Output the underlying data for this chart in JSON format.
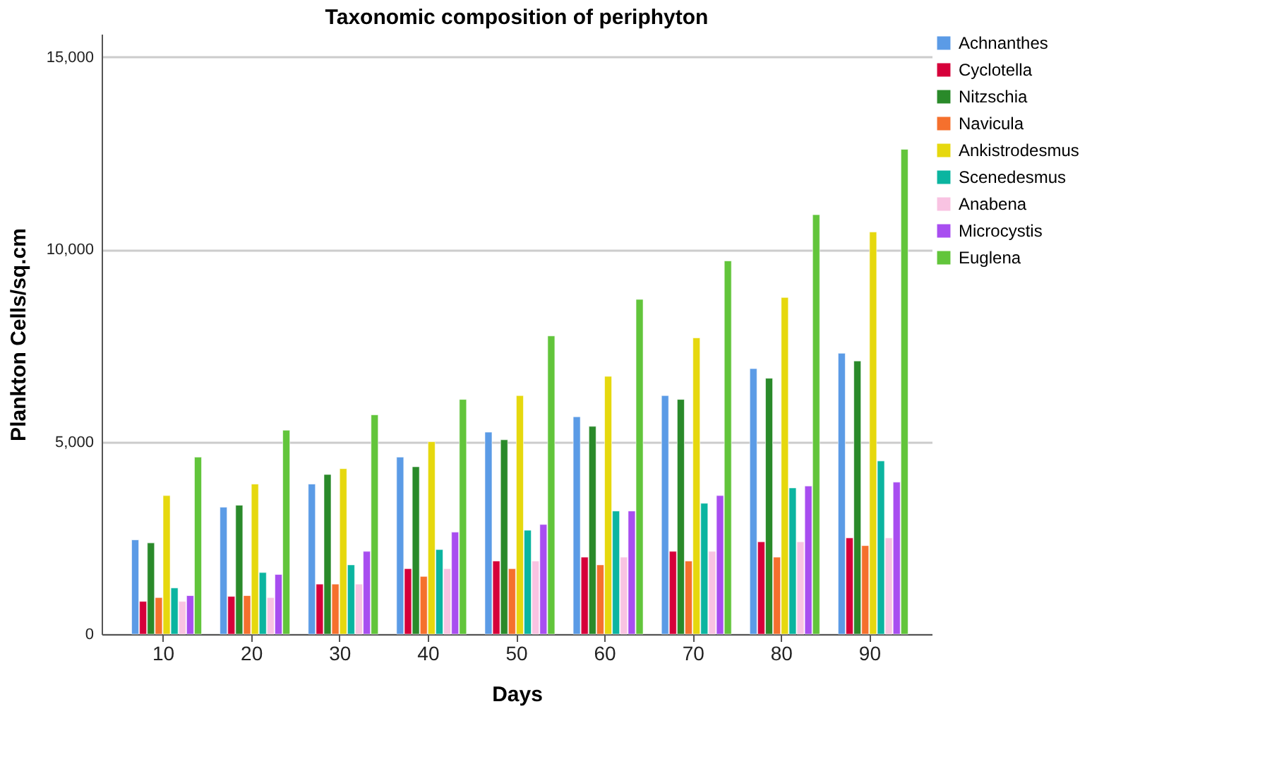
{
  "chart_data": {
    "type": "bar",
    "title": "Taxonomic composition of periphyton",
    "xlabel": "Days",
    "ylabel": "Plankton Cells/sq.cm",
    "categories": [
      "10",
      "20",
      "30",
      "40",
      "50",
      "60",
      "70",
      "80",
      "90"
    ],
    "series": [
      {
        "name": "Achnanthes",
        "color": "#5b9be6",
        "values": [
          2450,
          3300,
          3900,
          4600,
          5250,
          5650,
          6200,
          6900,
          7300
        ]
      },
      {
        "name": "Cyclotella",
        "color": "#d6003a",
        "values": [
          850,
          980,
          1300,
          1700,
          1900,
          2000,
          2150,
          2400,
          2500
        ]
      },
      {
        "name": "Nitzschia",
        "color": "#2a8a2a",
        "values": [
          2370,
          3350,
          4150,
          4350,
          5050,
          5400,
          6100,
          6650,
          7100
        ]
      },
      {
        "name": "Navicula",
        "color": "#f5702d",
        "values": [
          950,
          1000,
          1300,
          1500,
          1700,
          1800,
          1900,
          2000,
          2300
        ]
      },
      {
        "name": "Ankistrodesmus",
        "color": "#e6d80e",
        "values": [
          3600,
          3900,
          4300,
          5000,
          6200,
          6700,
          7700,
          8750,
          10450
        ]
      },
      {
        "name": "Scenedesmus",
        "color": "#0bb5a0",
        "values": [
          1200,
          1600,
          1800,
          2200,
          2700,
          3200,
          3400,
          3800,
          4500
        ]
      },
      {
        "name": "Anabena",
        "color": "#f9c3e2",
        "values": [
          850,
          950,
          1300,
          1700,
          1900,
          2000,
          2150,
          2400,
          2500
        ]
      },
      {
        "name": "Microcystis",
        "color": "#a84ef0",
        "values": [
          1000,
          1550,
          2150,
          2650,
          2850,
          3200,
          3600,
          3850,
          3950
        ]
      },
      {
        "name": "Euglena",
        "color": "#62c53b",
        "values": [
          4600,
          5300,
          5700,
          6100,
          7750,
          8700,
          9700,
          10900,
          12600
        ]
      }
    ],
    "ylim": [
      0,
      15600
    ],
    "yticks": [
      0,
      {
        "value": 5000,
        "label": "5,000"
      },
      {
        "value": 10000,
        "label": "10,000"
      },
      {
        "value": 15000,
        "label": "15,000"
      }
    ],
    "grid": "y",
    "legend": "top right"
  }
}
